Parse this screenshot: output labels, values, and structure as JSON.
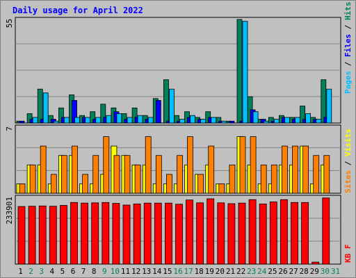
{
  "title": "Daily usage for April 2022",
  "colors": {
    "background": "#c0c0c0",
    "plot_bg": "#c0c0c0",
    "title": "#0000ff",
    "hits": "#00805c",
    "files": "#0000ff",
    "pages": "#00c0ff",
    "visits": "#ffff00",
    "sites": "#ff8000",
    "kbytes": "#ff0000",
    "weekend_label": "#00805c",
    "weekday_label": "#000000"
  },
  "chart_data": [
    {
      "type": "bar",
      "name": "hits-files-pages",
      "ymax_label": "55",
      "ymax": 55,
      "legend": [
        {
          "text": "Pages",
          "color": "#00c0ff"
        },
        {
          "text": " / ",
          "color": "#000000"
        },
        {
          "text": "Files",
          "color": "#0000ff"
        },
        {
          "text": " / ",
          "color": "#000000"
        },
        {
          "text": "Hits",
          "color": "#00805c"
        }
      ],
      "series": [
        {
          "key": "hits",
          "values": [
            1,
            5,
            18,
            4,
            8,
            15,
            4,
            6,
            10,
            8,
            5,
            8,
            4,
            13,
            23,
            4,
            6,
            3,
            6,
            3,
            1,
            55,
            14,
            2,
            3,
            4,
            3,
            9,
            3,
            23
          ]
        },
        {
          "key": "files",
          "values": [
            1,
            2,
            2,
            2,
            3,
            12,
            3,
            2,
            3,
            6,
            2,
            3,
            2,
            12,
            1,
            1,
            3,
            2,
            3,
            1,
            1,
            1,
            7,
            2,
            1,
            3,
            2,
            2,
            2,
            3
          ]
        },
        {
          "key": "pages",
          "values": [
            0,
            3,
            16,
            1,
            3,
            3,
            3,
            3,
            4,
            5,
            3,
            4,
            3,
            0,
            18,
            2,
            4,
            2,
            3,
            1,
            0,
            54,
            6,
            1,
            2,
            3,
            3,
            5,
            2,
            18
          ]
        }
      ]
    },
    {
      "type": "bar",
      "name": "sites-visits",
      "ymax_label": "7",
      "ymax": 7,
      "legend": [
        {
          "text": "Sites",
          "color": "#ff8000"
        },
        {
          "text": " / ",
          "color": "#000000"
        },
        {
          "text": "Visits",
          "color": "#ffff00"
        }
      ],
      "series": [
        {
          "key": "visits",
          "values": [
            1,
            3,
            3,
            1,
            4,
            4,
            1,
            1,
            2,
            5,
            4,
            3,
            3,
            1,
            1,
            1,
            3,
            2,
            3,
            1,
            1,
            6,
            3,
            1,
            1,
            3,
            3,
            5,
            1,
            3
          ]
        },
        {
          "key": "sites",
          "values": [
            1,
            3,
            5,
            2,
            4,
            5,
            2,
            4,
            6,
            4,
            4,
            3,
            6,
            4,
            2,
            4,
            6,
            2,
            5,
            1,
            3,
            6,
            6,
            3,
            3,
            5,
            5,
            5,
            4,
            4
          ]
        }
      ]
    },
    {
      "type": "bar",
      "name": "kbytes",
      "ymax_label": "233901",
      "ymax": 233901,
      "legend": [
        {
          "text": "KB F",
          "color": "#ff0000"
        }
      ],
      "series": [
        {
          "key": "kbytes",
          "values": [
            202000,
            203000,
            204000,
            203000,
            206000,
            216000,
            214000,
            215000,
            216000,
            213000,
            207000,
            211000,
            214000,
            214000,
            214000,
            210000,
            225000,
            215000,
            229000,
            215000,
            212000,
            214000,
            226000,
            211000,
            218000,
            226000,
            216000,
            216000,
            7000,
            232000
          ]
        }
      ]
    }
  ],
  "x_axis": {
    "labels": [
      "1",
      "2",
      "3",
      "4",
      "5",
      "6",
      "7",
      "8",
      "9",
      "10",
      "11",
      "12",
      "13",
      "14",
      "15",
      "16",
      "17",
      "18",
      "19",
      "20",
      "21",
      "22",
      "23",
      "24",
      "25",
      "26",
      "27",
      "28",
      "29",
      "30",
      "31"
    ],
    "weekend_days": [
      "2",
      "3",
      "9",
      "10",
      "16",
      "17",
      "23",
      "24",
      "30",
      "31"
    ]
  }
}
